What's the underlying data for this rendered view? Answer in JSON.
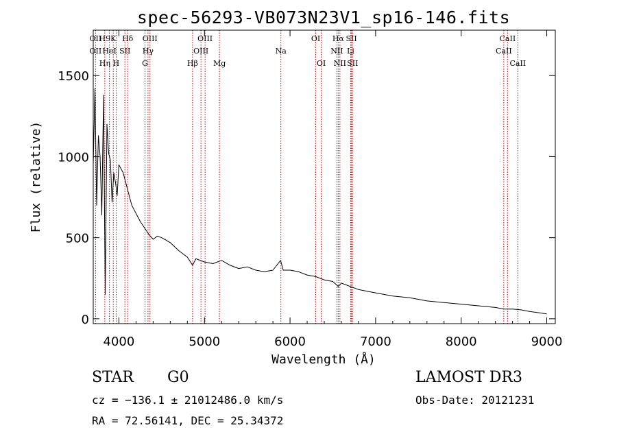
{
  "chart_data": {
    "type": "line",
    "title": "spec-56293-VB073N23V1_sp16-146.fits",
    "xlabel": "Wavelength (Å)",
    "ylabel": "Flux (relative)",
    "xlim": [
      3700,
      9100
    ],
    "ylim": [
      -30,
      1780
    ],
    "x_ticks": [
      4000,
      5000,
      6000,
      7000,
      8000,
      9000
    ],
    "x_tick_labels": [
      "4000",
      "5000",
      "6000",
      "7000",
      "8000",
      "9000"
    ],
    "y_ticks": [
      0,
      500,
      1000,
      1500
    ],
    "y_tick_labels": [
      "0",
      "500",
      "1000",
      "1500"
    ],
    "series": [
      {
        "name": "flux",
        "x": [
          3700,
          3720,
          3740,
          3760,
          3780,
          3800,
          3820,
          3840,
          3860,
          3880,
          3900,
          3920,
          3940,
          3960,
          3980,
          4000,
          4050,
          4100,
          4150,
          4200,
          4250,
          4300,
          4350,
          4400,
          4450,
          4500,
          4600,
          4700,
          4800,
          4861,
          4900,
          5000,
          5100,
          5200,
          5300,
          5400,
          5500,
          5600,
          5700,
          5800,
          5890,
          5920,
          6000,
          6100,
          6200,
          6300,
          6400,
          6500,
          6563,
          6600,
          6700,
          6800,
          6900,
          7000,
          7200,
          7400,
          7600,
          7800,
          8000,
          8200,
          8400,
          8500,
          8600,
          8700,
          8800,
          9000
        ],
        "y": [
          950,
          1420,
          700,
          1130,
          1000,
          640,
          1380,
          150,
          1200,
          1020,
          980,
          720,
          900,
          840,
          760,
          950,
          900,
          800,
          700,
          650,
          600,
          560,
          520,
          490,
          510,
          500,
          470,
          420,
          380,
          330,
          370,
          350,
          340,
          360,
          330,
          310,
          320,
          300,
          290,
          300,
          360,
          300,
          300,
          290,
          270,
          260,
          240,
          230,
          200,
          220,
          200,
          180,
          170,
          160,
          140,
          130,
          110,
          100,
          90,
          80,
          70,
          60,
          60,
          55,
          45,
          30
        ]
      }
    ],
    "line_markers": [
      {
        "label": "OII",
        "x": 3727,
        "row": 2
      },
      {
        "label": "H9",
        "x": 3835,
        "row": 1
      },
      {
        "label": "OII",
        "x": 3727,
        "row": 1
      },
      {
        "label": "K",
        "x": 3934,
        "row": 1
      },
      {
        "label": "HeI",
        "x": 3889,
        "row": 2
      },
      {
        "label": "Hη",
        "x": 3835,
        "row": 3
      },
      {
        "label": "H",
        "x": 3968,
        "row": 3
      },
      {
        "label": "Hδ",
        "x": 4102,
        "row": 1
      },
      {
        "label": "SII",
        "x": 4070,
        "row": 2
      },
      {
        "label": "OIII",
        "x": 4363,
        "row": 1
      },
      {
        "label": "Hγ",
        "x": 4340,
        "row": 2
      },
      {
        "label": "G",
        "x": 4305,
        "row": 3
      },
      {
        "label": "Hβ",
        "x": 4861,
        "row": 3
      },
      {
        "label": "OIII",
        "x": 5007,
        "row": 1
      },
      {
        "label": "OIII",
        "x": 4959,
        "row": 2
      },
      {
        "label": "Mg",
        "x": 5175,
        "row": 3
      },
      {
        "label": "Na",
        "x": 5893,
        "row": 2
      },
      {
        "label": "OI",
        "x": 6300,
        "row": 1
      },
      {
        "label": "OI",
        "x": 6364,
        "row": 3
      },
      {
        "label": "Hα",
        "x": 6563,
        "row": 1
      },
      {
        "label": "SII",
        "x": 6717,
        "row": 1
      },
      {
        "label": "NII",
        "x": 6548,
        "row": 2
      },
      {
        "label": "Li",
        "x": 6708,
        "row": 2
      },
      {
        "label": "NII",
        "x": 6583,
        "row": 3
      },
      {
        "label": "SII",
        "x": 6731,
        "row": 3
      },
      {
        "label": "CaII",
        "x": 8542,
        "row": 1
      },
      {
        "label": "CaII",
        "x": 8498,
        "row": 2
      },
      {
        "label": "CaII",
        "x": 8662,
        "row": 3
      }
    ],
    "line_color": "#cc0000"
  },
  "info": {
    "object_class": "STAR",
    "subclass": "G0",
    "survey": "LAMOST DR3",
    "redshift": "cz = −136.1 ± 21012486.0 km/s",
    "obs_date": "Obs-Date: 20121231",
    "coords": "RA =  72.56141, DEC =  25.34372"
  }
}
